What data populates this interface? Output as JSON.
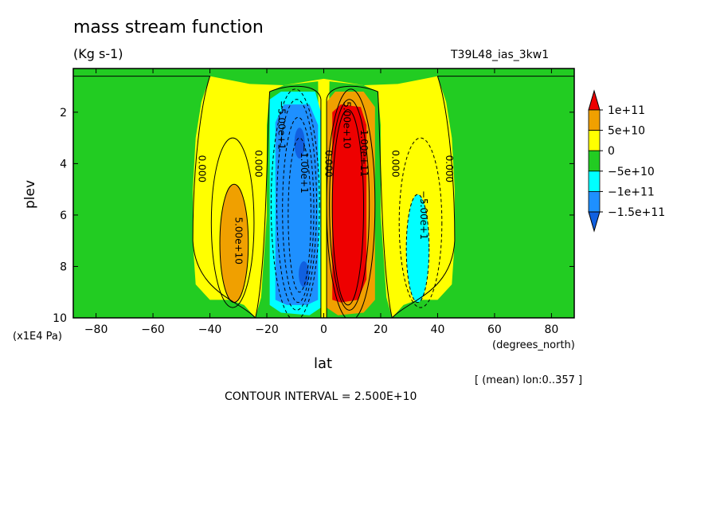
{
  "header": {
    "title": "mass stream function",
    "units": "(Kg s-1)",
    "run_id": "T39L48_ias_3kw1"
  },
  "footer": {
    "mean_info": "[ (mean) lon:0..357 ]",
    "contour_interval": "CONTOUR INTERVAL = 2.500E+10"
  },
  "colors": {
    "red": "#ee0000",
    "orange": "#f0a000",
    "yellow": "#ffff00",
    "green": "#22cc22",
    "cyan": "#00ffff",
    "blue": "#1e90ff",
    "deep_blue": "#1060e0"
  },
  "chart_data": {
    "type": "heatmap",
    "subtype": "filled-contour",
    "title": "mass stream function",
    "xlabel": "lat",
    "xunits": "(degrees_north)",
    "ylabel": "plev",
    "yunits": "(x1E4 Pa)",
    "xlim": [
      -88,
      88
    ],
    "ylim": [
      10,
      0.3
    ],
    "y_inverted": true,
    "xticks": [
      -80,
      -60,
      -40,
      -20,
      0,
      20,
      40,
      60,
      80
    ],
    "xtick_labels": [
      "−80",
      "−60",
      "−40",
      "−20",
      "0",
      "20",
      "40",
      "60",
      "80"
    ],
    "yticks": [
      2,
      4,
      6,
      8,
      10
    ],
    "ytick_labels": [
      "2",
      "4",
      "6",
      "8",
      "10"
    ],
    "legend_position": "right",
    "legend": {
      "labels": [
        "1e+11",
        "5e+10",
        "0",
        "−5e+10",
        "−1e+11",
        "−1.5e+11"
      ],
      "levels": [
        100000000000,
        50000000000,
        0,
        -50000000000,
        -100000000000,
        -150000000000
      ]
    },
    "contour_labels": [
      {
        "text": "5.00e+10",
        "x": -31,
        "y": 7.0
      },
      {
        "text": "0.000",
        "x": -44,
        "y": 4.2
      },
      {
        "text": "0.000",
        "x": -24,
        "y": 4.0
      },
      {
        "text": "−5.00e+1",
        "x": -16,
        "y": 2.5
      },
      {
        "text": "−1.00e+1",
        "x": -8,
        "y": 4.2
      },
      {
        "text": "0.000",
        "x": 0.5,
        "y": 4.0
      },
      {
        "text": "1.00e+11",
        "x": 13,
        "y": 3.6
      },
      {
        "text": "5.00e+10",
        "x": 7,
        "y": 2.5
      },
      {
        "text": "0.000",
        "x": 24,
        "y": 4.0
      },
      {
        "text": "−5.00e+1",
        "x": 34,
        "y": 6.0
      },
      {
        "text": "0.000",
        "x": 43,
        "y": 4.2
      }
    ],
    "regions": [
      {
        "name": "SH subtropical positive cell",
        "level": 50000000000,
        "center_lat": -31,
        "center_plev": 7.0
      },
      {
        "name": "SH Hadley cell core",
        "level": -150000000000,
        "center_lat": -8,
        "center_plev": 5.5
      },
      {
        "name": "NH Hadley cell core",
        "level": 100000000000,
        "center_lat": 8,
        "center_plev": 6.0
      },
      {
        "name": "NH subtropical negative cell",
        "level": -50000000000,
        "center_lat": 33,
        "center_plev": 7.0
      }
    ]
  }
}
